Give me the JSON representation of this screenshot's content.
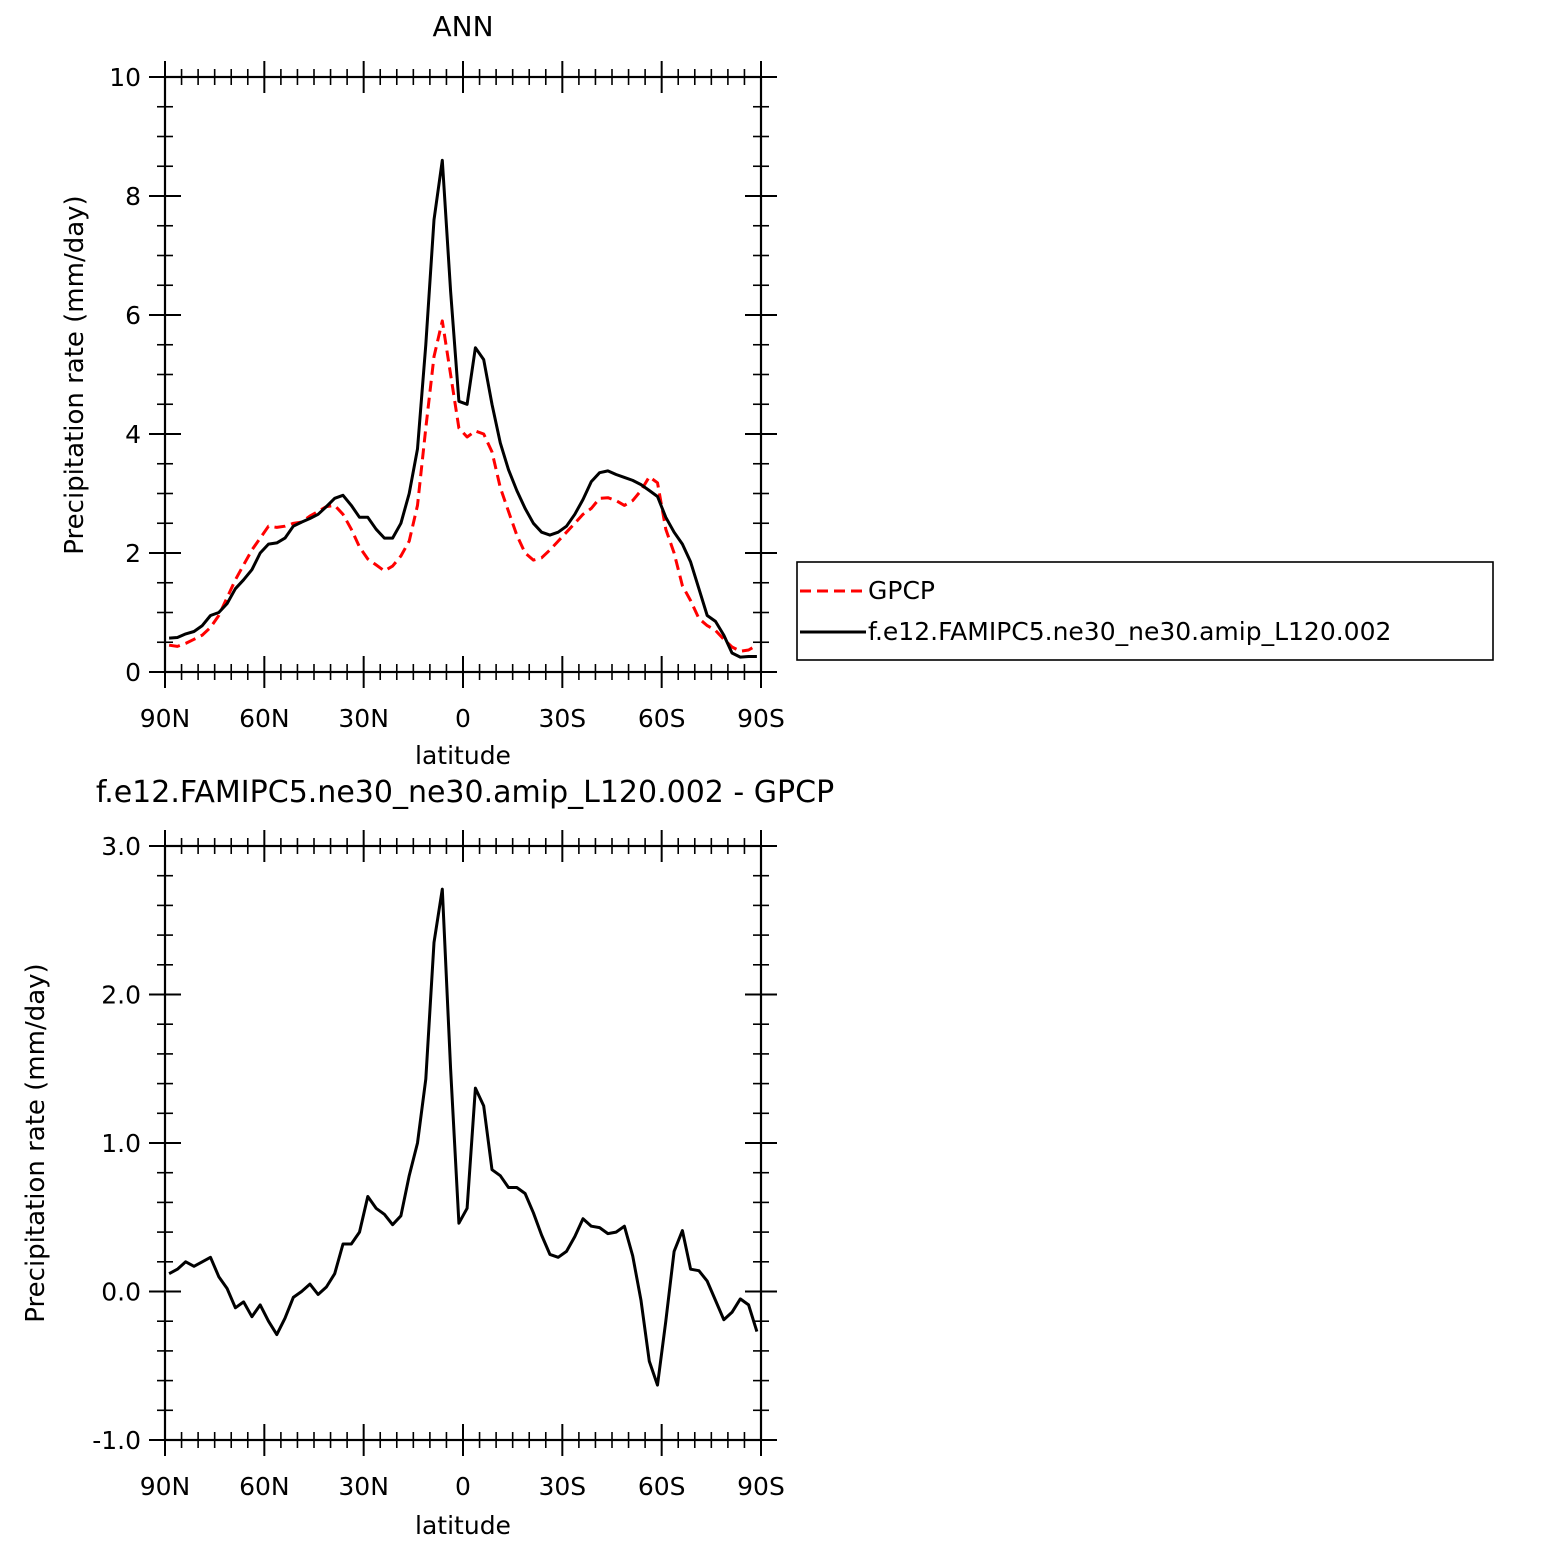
{
  "legend": {
    "entries": [
      {
        "label": "GPCP",
        "color": "#ff0000",
        "dashed": true
      },
      {
        "label": "f.e12.FAMIPC5.ne30_ne30.amip_L120.002",
        "color": "#000000",
        "dashed": false
      }
    ]
  },
  "chart_data": [
    {
      "type": "line",
      "title": "ANN",
      "xlabel": "latitude",
      "ylabel": "Precipitation rate (mm/day)",
      "xlim": [
        90,
        -90
      ],
      "ylim": [
        0,
        10
      ],
      "x_ticks": [
        90,
        60,
        30,
        0,
        -30,
        -60,
        -90
      ],
      "x_tick_labels": [
        "90N",
        "60N",
        "30N",
        "0",
        "30S",
        "60S",
        "90S"
      ],
      "y_ticks": [
        0,
        2,
        4,
        6,
        8,
        10
      ],
      "y_tick_labels": [
        "0",
        "2",
        "4",
        "6",
        "8",
        "10"
      ],
      "grid": false,
      "series": [
        {
          "name": "GPCP",
          "color": "#ff0000",
          "dashed": true,
          "x": [
            88.75,
            86.25,
            83.75,
            81.25,
            78.75,
            76.25,
            73.75,
            71.25,
            68.75,
            66.25,
            63.75,
            61.25,
            58.75,
            56.25,
            53.75,
            51.25,
            48.75,
            46.25,
            43.75,
            41.25,
            38.75,
            36.25,
            33.75,
            31.25,
            28.75,
            26.25,
            23.75,
            21.25,
            18.75,
            16.25,
            13.75,
            11.25,
            8.75,
            6.25,
            3.75,
            1.25,
            -1.25,
            -3.75,
            -6.25,
            -8.75,
            -11.25,
            -13.75,
            -16.25,
            -18.75,
            -21.25,
            -23.75,
            -26.25,
            -28.75,
            -31.25,
            -33.75,
            -36.25,
            -38.75,
            -41.25,
            -43.75,
            -46.25,
            -48.75,
            -51.25,
            -53.75,
            -56.25,
            -58.75,
            -61.25,
            -63.75,
            -66.25,
            -68.75,
            -71.25,
            -73.75,
            -76.25,
            -78.75,
            -81.25,
            -83.75,
            -86.25,
            -88.75
          ],
          "values": [
            0.45,
            0.43,
            0.48,
            0.55,
            0.62,
            0.75,
            0.95,
            1.25,
            1.55,
            1.8,
            2.05,
            2.25,
            2.45,
            2.43,
            2.45,
            2.5,
            2.52,
            2.62,
            2.7,
            2.78,
            2.8,
            2.65,
            2.4,
            2.1,
            1.9,
            1.8,
            1.7,
            1.78,
            1.95,
            2.2,
            2.8,
            4.1,
            5.3,
            5.9,
            5.0,
            4.1,
            3.95,
            4.05,
            4.0,
            3.7,
            3.1,
            2.7,
            2.3,
            2.0,
            1.88,
            1.92,
            2.05,
            2.2,
            2.35,
            2.5,
            2.65,
            2.75,
            2.92,
            2.93,
            2.88,
            2.8,
            2.88,
            3.05,
            3.28,
            3.18,
            2.4,
            2.0,
            1.45,
            1.2,
            0.9,
            0.78,
            0.7,
            0.55,
            0.42,
            0.35,
            0.37,
            0.45
          ]
        },
        {
          "name": "f.e12.FAMIPC5.ne30_ne30.amip_L120.002",
          "color": "#000000",
          "dashed": false,
          "x": [
            88.75,
            86.25,
            83.75,
            81.25,
            78.75,
            76.25,
            73.75,
            71.25,
            68.75,
            66.25,
            63.75,
            61.25,
            58.75,
            56.25,
            53.75,
            51.25,
            48.75,
            46.25,
            43.75,
            41.25,
            38.75,
            36.25,
            33.75,
            31.25,
            28.75,
            26.25,
            23.75,
            21.25,
            18.75,
            16.25,
            13.75,
            11.25,
            8.75,
            6.25,
            3.75,
            1.25,
            -1.25,
            -3.75,
            -6.25,
            -8.75,
            -11.25,
            -13.75,
            -16.25,
            -18.75,
            -21.25,
            -23.75,
            -26.25,
            -28.75,
            -31.25,
            -33.75,
            -36.25,
            -38.75,
            -41.25,
            -43.75,
            -46.25,
            -48.75,
            -51.25,
            -53.75,
            -56.25,
            -58.75,
            -61.25,
            -63.75,
            -66.25,
            -68.75,
            -71.25,
            -73.75,
            -76.25,
            -78.75,
            -81.25,
            -83.75,
            -86.25,
            -88.75
          ],
          "values": [
            0.57,
            0.58,
            0.64,
            0.68,
            0.78,
            0.95,
            1.0,
            1.15,
            1.4,
            1.55,
            1.72,
            2.0,
            2.15,
            2.17,
            2.25,
            2.45,
            2.52,
            2.58,
            2.65,
            2.78,
            2.92,
            2.97,
            2.8,
            2.6,
            2.6,
            2.4,
            2.25,
            2.25,
            2.5,
            3.0,
            3.75,
            5.5,
            7.6,
            8.6,
            6.4,
            4.55,
            4.5,
            5.45,
            5.25,
            4.5,
            3.85,
            3.4,
            3.05,
            2.75,
            2.5,
            2.35,
            2.3,
            2.35,
            2.45,
            2.65,
            2.9,
            3.2,
            3.35,
            3.38,
            3.32,
            3.27,
            3.22,
            3.15,
            3.05,
            2.95,
            2.6,
            2.35,
            2.15,
            1.85,
            1.4,
            0.95,
            0.85,
            0.62,
            0.32,
            0.25,
            0.26,
            0.26
          ]
        }
      ]
    },
    {
      "type": "line",
      "title": "f.e12.FAMIPC5.ne30_ne30.amip_L120.002 - GPCP",
      "xlabel": "latitude",
      "ylabel": "Precipitation rate (mm/day)",
      "xlim": [
        90,
        -90
      ],
      "ylim": [
        -1.0,
        3.0
      ],
      "x_ticks": [
        90,
        60,
        30,
        0,
        -30,
        -60,
        -90
      ],
      "x_tick_labels": [
        "90N",
        "60N",
        "30N",
        "0",
        "30S",
        "60S",
        "90S"
      ],
      "y_ticks": [
        -1.0,
        0.0,
        1.0,
        2.0,
        3.0
      ],
      "y_tick_labels": [
        "-1.0",
        "0.0",
        "1.0",
        "2.0",
        "3.0"
      ],
      "grid": false,
      "series": [
        {
          "color": "#000000",
          "dashed": false,
          "x": [
            88.75,
            86.25,
            83.75,
            81.25,
            78.75,
            76.25,
            73.75,
            71.25,
            68.75,
            66.25,
            63.75,
            61.25,
            58.75,
            56.25,
            53.75,
            51.25,
            48.75,
            46.25,
            43.75,
            41.25,
            38.75,
            36.25,
            33.75,
            31.25,
            28.75,
            26.25,
            23.75,
            21.25,
            18.75,
            16.25,
            13.75,
            11.25,
            8.75,
            6.25,
            3.75,
            1.25,
            -1.25,
            -3.75,
            -6.25,
            -8.75,
            -11.25,
            -13.75,
            -16.25,
            -18.75,
            -21.25,
            -23.75,
            -26.25,
            -28.75,
            -31.25,
            -33.75,
            -36.25,
            -38.75,
            -41.25,
            -43.75,
            -46.25,
            -48.75,
            -51.25,
            -53.75,
            -56.25,
            -58.75,
            -61.25,
            -63.75,
            -66.25,
            -68.75,
            -71.25,
            -73.75,
            -76.25,
            -78.75,
            -81.25,
            -83.75,
            -86.25,
            -88.75
          ],
          "values": [
            0.12,
            0.15,
            0.2,
            0.17,
            0.2,
            0.23,
            0.1,
            0.02,
            -0.11,
            -0.07,
            -0.17,
            -0.09,
            -0.2,
            -0.29,
            -0.18,
            -0.04,
            0.0,
            0.05,
            -0.02,
            0.03,
            0.12,
            0.32,
            0.32,
            0.4,
            0.64,
            0.56,
            0.52,
            0.45,
            0.51,
            0.78,
            1.0,
            1.43,
            2.35,
            2.71,
            1.5,
            0.46,
            0.56,
            1.37,
            1.25,
            0.82,
            0.78,
            0.7,
            0.7,
            0.66,
            0.53,
            0.38,
            0.25,
            0.23,
            0.27,
            0.37,
            0.49,
            0.44,
            0.43,
            0.39,
            0.4,
            0.44,
            0.24,
            -0.06,
            -0.47,
            -0.63,
            -0.2,
            0.27,
            0.41,
            0.15,
            0.14,
            0.07,
            -0.06,
            -0.19,
            -0.14,
            -0.05,
            -0.09,
            -0.27
          ]
        }
      ]
    }
  ]
}
